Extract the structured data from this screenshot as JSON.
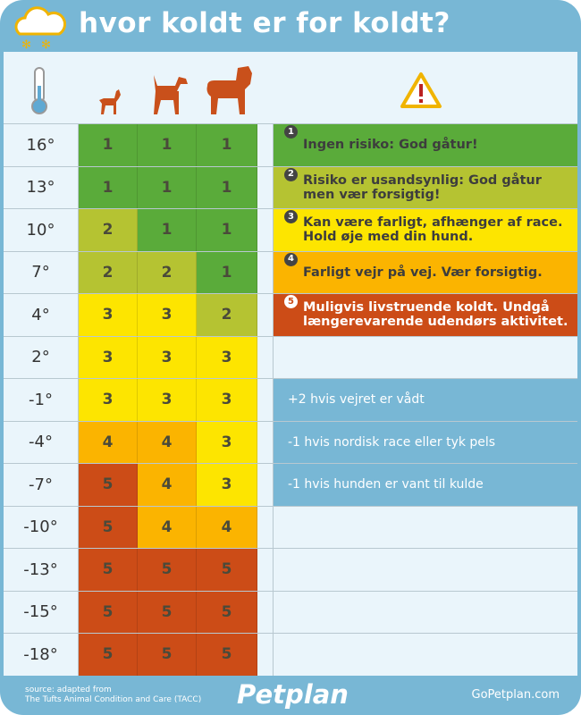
{
  "header": {
    "title": "hvor koldt er for koldt?",
    "icon": "snow-cloud-icon"
  },
  "columns": {
    "temperature_icon": "thermometer-icon",
    "dogs": [
      "small-dog-icon",
      "medium-dog-icon",
      "large-dog-icon"
    ],
    "risk_icon": "warning-icon"
  },
  "colors": {
    "1": "#5aab3a",
    "2": "#b5c332",
    "3": "#fde500",
    "4": "#fbb400",
    "5": "#cc4c17",
    "header": "#78b7d5",
    "background": "#eaf5fb",
    "dog": "#c9501b"
  },
  "rows": [
    {
      "temp": "16°",
      "small": 1,
      "medium": 1,
      "large": 1
    },
    {
      "temp": "13°",
      "small": 1,
      "medium": 1,
      "large": 1
    },
    {
      "temp": "10°",
      "small": 2,
      "medium": 1,
      "large": 1
    },
    {
      "temp": "7°",
      "small": 2,
      "medium": 2,
      "large": 1
    },
    {
      "temp": "4°",
      "small": 3,
      "medium": 3,
      "large": 2
    },
    {
      "temp": "2°",
      "small": 3,
      "medium": 3,
      "large": 3
    },
    {
      "temp": "-1°",
      "small": 3,
      "medium": 3,
      "large": 3
    },
    {
      "temp": "-4°",
      "small": 4,
      "medium": 4,
      "large": 3
    },
    {
      "temp": "-7°",
      "small": 5,
      "medium": 4,
      "large": 3
    },
    {
      "temp": "-10°",
      "small": 5,
      "medium": 4,
      "large": 4
    },
    {
      "temp": "-13°",
      "small": 5,
      "medium": 5,
      "large": 5
    },
    {
      "temp": "-15°",
      "small": 5,
      "medium": 5,
      "large": 5
    },
    {
      "temp": "-18°",
      "small": 5,
      "medium": 5,
      "large": 5
    }
  ],
  "legend": [
    {
      "level": "1",
      "text": "Ingen risiko: God gåtur!"
    },
    {
      "level": "2",
      "text": "Risiko er usandsynlig: God gåtur men vær forsigtig!"
    },
    {
      "level": "3",
      "text": "Kan være farligt, afhænger af race. Hold øje med din hund."
    },
    {
      "level": "4",
      "text": "Farligt vejr på vej. Vær forsigtig."
    },
    {
      "level": "5",
      "text": "Muligvis livstruende koldt. Undgå længerevarende udendørs aktivitet."
    }
  ],
  "adjustments": [
    "+2 hvis vejret er vådt",
    "-1 hvis nordisk race eller tyk pels",
    "-1 hvis hunden er vant til kulde"
  ],
  "footer": {
    "source_line1": "source: adapted from",
    "source_line2": "The Tufts Animal Condition and Care (TACC)",
    "logo": "Petplan",
    "website": "GoPetplan.com"
  }
}
